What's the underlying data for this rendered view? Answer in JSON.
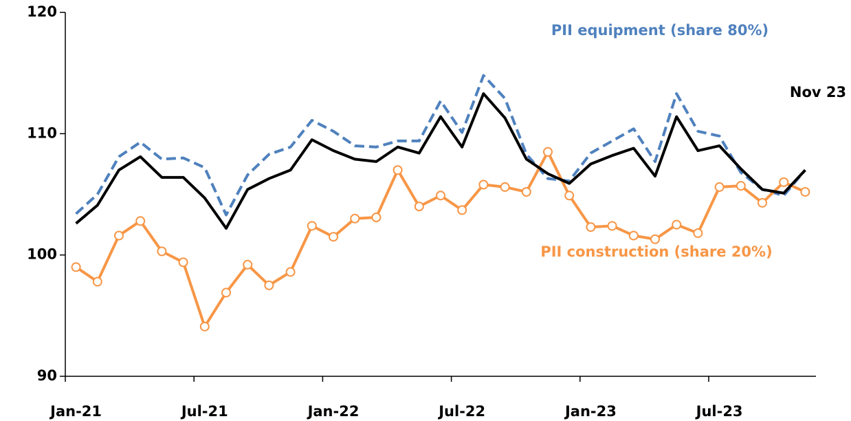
{
  "chart_data": {
    "type": "line",
    "categories": [
      "Jan-21",
      null,
      null,
      null,
      null,
      null,
      "Jul-21",
      null,
      null,
      null,
      null,
      null,
      "Jan-22",
      null,
      null,
      null,
      null,
      null,
      "Jul-22",
      null,
      null,
      null,
      null,
      null,
      "Jan-23",
      null,
      null,
      null,
      null,
      null,
      "Jul-23",
      null,
      null,
      null,
      null
    ],
    "ylim": [
      90,
      120
    ],
    "yticks": [
      90,
      100,
      110,
      120
    ],
    "annotation": "Nov 23",
    "series": [
      {
        "name": "PII equipment (share 80%)",
        "color": "#4f81bd",
        "dash": true,
        "markers": false,
        "values": [
          103.4,
          105.0,
          108.1,
          109.3,
          107.9,
          108.0,
          107.2,
          103.3,
          106.6,
          108.3,
          108.9,
          111.1,
          110.2,
          109.0,
          108.9,
          109.4,
          109.4,
          112.7,
          110.1,
          114.8,
          112.9,
          108.3,
          106.3,
          106.1,
          108.4,
          109.4,
          110.4,
          107.7,
          113.3,
          110.2,
          109.8,
          106.8,
          105.4,
          104.9,
          107.0
        ]
      },
      {
        "name": "PII construction (share 20%)",
        "color": "#f79646",
        "dash": false,
        "markers": true,
        "values": [
          99.0,
          97.8,
          101.6,
          102.8,
          100.3,
          99.4,
          94.1,
          96.9,
          99.2,
          97.5,
          98.6,
          102.4,
          101.5,
          103.0,
          103.1,
          107.0,
          104.0,
          104.9,
          103.7,
          105.8,
          105.6,
          105.2,
          108.5,
          104.9,
          102.3,
          102.4,
          101.6,
          101.3,
          102.5,
          101.8,
          105.6,
          105.7,
          104.3,
          106.0,
          105.2
        ]
      },
      {
        "color": "#000000",
        "dash": false,
        "markers": false,
        "values": [
          102.6,
          104.1,
          107.0,
          108.1,
          106.4,
          106.4,
          104.7,
          102.2,
          105.4,
          106.3,
          107.0,
          109.5,
          108.6,
          107.9,
          107.7,
          108.9,
          108.4,
          111.4,
          108.9,
          113.3,
          111.3,
          107.9,
          106.7,
          105.9,
          107.5,
          108.2,
          108.8,
          106.5,
          111.4,
          108.6,
          109.0,
          107.1,
          105.4,
          105.1,
          107.0
        ]
      }
    ]
  }
}
